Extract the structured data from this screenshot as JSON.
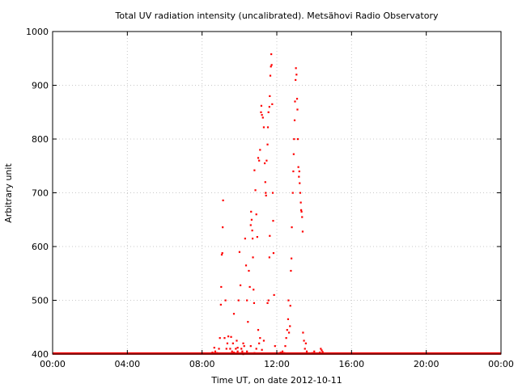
{
  "chart_data": {
    "type": "scatter",
    "title": "Total UV radiation intensity (uncalibrated). Metsähovi Radio Observatory",
    "xlabel": "Time UT, on date 2012-10-11",
    "ylabel": "Arbitrary unit",
    "xlim": [
      0,
      24
    ],
    "ylim": [
      400,
      1000
    ],
    "x_unit": "hours UT",
    "x_ticks": [
      0,
      4,
      8,
      12,
      16,
      20,
      24
    ],
    "x_tick_labels": [
      "00:00",
      "04:00",
      "08:00",
      "12:00",
      "16:00",
      "20:00",
      "00:00"
    ],
    "y_ticks": [
      400,
      500,
      600,
      700,
      800,
      900,
      1000
    ],
    "y_tick_labels": [
      "400",
      "500",
      "600",
      "700",
      "800",
      "900",
      "1000"
    ],
    "grid": true,
    "legend": "none",
    "baseline": {
      "from": 0,
      "to": 24,
      "value": 401
    },
    "series": [
      {
        "color": "#ff0000",
        "points": [
          [
            8.55,
            403
          ],
          [
            8.65,
            412
          ],
          [
            8.7,
            405
          ],
          [
            8.8,
            402
          ],
          [
            8.9,
            410
          ],
          [
            8.95,
            430
          ],
          [
            9.0,
            492
          ],
          [
            9.02,
            525
          ],
          [
            9.05,
            585
          ],
          [
            9.08,
            588
          ],
          [
            9.1,
            636
          ],
          [
            9.12,
            686
          ],
          [
            9.2,
            430
          ],
          [
            9.25,
            500
          ],
          [
            9.3,
            410
          ],
          [
            9.35,
            420
          ],
          [
            9.4,
            433
          ],
          [
            9.5,
            410
          ],
          [
            9.55,
            432
          ],
          [
            9.6,
            405
          ],
          [
            9.65,
            420
          ],
          [
            9.7,
            475
          ],
          [
            9.8,
            410
          ],
          [
            9.85,
            425
          ],
          [
            9.9,
            405
          ],
          [
            9.95,
            500
          ],
          [
            10.0,
            590
          ],
          [
            10.05,
            528
          ],
          [
            10.1,
            410
          ],
          [
            10.15,
            405
          ],
          [
            10.2,
            420
          ],
          [
            10.25,
            415
          ],
          [
            10.3,
            615
          ],
          [
            10.35,
            565
          ],
          [
            10.4,
            500
          ],
          [
            10.45,
            460
          ],
          [
            10.5,
            555
          ],
          [
            10.55,
            525
          ],
          [
            10.6,
            640
          ],
          [
            10.62,
            665
          ],
          [
            10.65,
            650
          ],
          [
            10.68,
            630
          ],
          [
            10.7,
            615
          ],
          [
            10.72,
            580
          ],
          [
            10.75,
            520
          ],
          [
            10.78,
            495
          ],
          [
            10.8,
            742
          ],
          [
            10.85,
            705
          ],
          [
            10.9,
            660
          ],
          [
            10.95,
            618
          ],
          [
            11.0,
            765
          ],
          [
            11.05,
            760
          ],
          [
            11.1,
            780
          ],
          [
            11.15,
            850
          ],
          [
            11.17,
            862
          ],
          [
            11.2,
            845
          ],
          [
            11.25,
            840
          ],
          [
            11.3,
            822
          ],
          [
            11.35,
            755
          ],
          [
            11.38,
            720
          ],
          [
            11.4,
            700
          ],
          [
            11.42,
            695
          ],
          [
            11.45,
            760
          ],
          [
            11.5,
            790
          ],
          [
            11.52,
            822
          ],
          [
            11.55,
            850
          ],
          [
            11.6,
            860
          ],
          [
            11.62,
            880
          ],
          [
            11.65,
            918
          ],
          [
            11.68,
            935
          ],
          [
            11.7,
            958
          ],
          [
            11.72,
            938
          ],
          [
            11.75,
            865
          ],
          [
            11.78,
            700
          ],
          [
            11.8,
            648
          ],
          [
            11.82,
            588
          ],
          [
            11.85,
            510
          ],
          [
            11.9,
            415
          ],
          [
            11.0,
            445
          ],
          [
            11.05,
            420
          ],
          [
            11.1,
            430
          ],
          [
            11.2,
            408
          ],
          [
            11.3,
            425
          ],
          [
            10.9,
            410
          ],
          [
            10.8,
            402
          ],
          [
            10.6,
            415
          ],
          [
            10.4,
            405
          ],
          [
            10.2,
            400
          ],
          [
            9.9,
            412
          ],
          [
            9.7,
            403
          ],
          [
            11.6,
            580
          ],
          [
            11.62,
            620
          ],
          [
            11.55,
            500
          ],
          [
            11.5,
            495
          ],
          [
            12.2,
            403
          ],
          [
            12.3,
            405
          ],
          [
            12.4,
            402
          ],
          [
            12.45,
            415
          ],
          [
            12.5,
            430
          ],
          [
            12.55,
            445
          ],
          [
            12.6,
            465
          ],
          [
            12.62,
            500
          ],
          [
            12.65,
            440
          ],
          [
            12.7,
            452
          ],
          [
            12.72,
            490
          ],
          [
            12.75,
            555
          ],
          [
            12.78,
            578
          ],
          [
            12.8,
            636
          ],
          [
            12.85,
            700
          ],
          [
            12.88,
            740
          ],
          [
            12.9,
            772
          ],
          [
            12.92,
            800
          ],
          [
            12.95,
            835
          ],
          [
            12.97,
            870
          ],
          [
            13.0,
            910
          ],
          [
            13.02,
            932
          ],
          [
            13.05,
            920
          ],
          [
            13.08,
            875
          ],
          [
            13.1,
            855
          ],
          [
            13.12,
            800
          ],
          [
            13.15,
            748
          ],
          [
            13.18,
            730
          ],
          [
            13.2,
            740
          ],
          [
            13.22,
            718
          ],
          [
            13.25,
            700
          ],
          [
            13.28,
            682
          ],
          [
            13.3,
            668
          ],
          [
            13.32,
            665
          ],
          [
            13.35,
            655
          ],
          [
            13.38,
            628
          ],
          [
            13.4,
            440
          ],
          [
            13.45,
            425
          ],
          [
            13.5,
            410
          ],
          [
            13.55,
            420
          ],
          [
            13.6,
            405
          ],
          [
            13.9,
            402
          ],
          [
            14.0,
            405
          ],
          [
            14.3,
            403
          ],
          [
            14.35,
            410
          ],
          [
            14.4,
            407
          ],
          [
            14.45,
            404
          ]
        ]
      }
    ]
  }
}
